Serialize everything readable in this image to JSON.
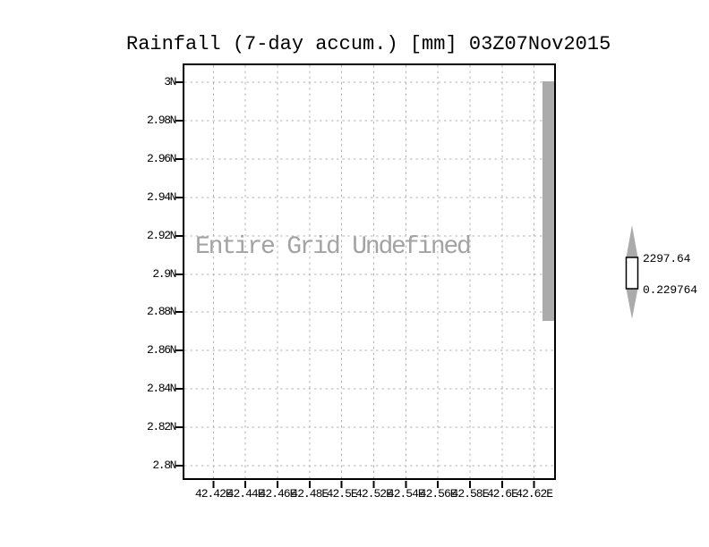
{
  "title": "Rainfall (7-day accum.) [mm] 03Z07Nov2015",
  "plot": {
    "annotation": "Entire Grid Undefined",
    "y_axis": {
      "labels": [
        "3N",
        "2.98N",
        "2.96N",
        "2.94N",
        "2.92N",
        "2.9N",
        "2.88N",
        "2.86N",
        "2.84N",
        "2.82N",
        "2.8N"
      ]
    },
    "x_axis": {
      "labels": [
        "42.42E",
        "42.44E",
        "42.46E",
        "42.48E",
        "42.5E",
        "42.52E",
        "42.54E",
        "42.56E",
        "42.58E",
        "42.6E",
        "42.62E"
      ]
    }
  },
  "colorbar": {
    "max_label": "2297.64",
    "min_label": "0.229764"
  },
  "colors": {
    "background": "#ffffff",
    "axis": "#000000",
    "grid": "#b3b3b3",
    "shade": "#ababab",
    "annotation": "#a3a3a3",
    "colorbar_fill": "#ffffff"
  },
  "chart_data": {
    "type": "heatmap",
    "title": "Rainfall (7-day accum.) [mm] 03Z07Nov2015",
    "variable": "Rainfall (7-day accum.)",
    "units": "mm",
    "valid_time": "03Z07Nov2015",
    "status": "Entire Grid Undefined",
    "values": null,
    "x_ticks": [
      42.42,
      42.44,
      42.46,
      42.48,
      42.5,
      42.52,
      42.54,
      42.56,
      42.58,
      42.6,
      42.62
    ],
    "x_tick_labels": [
      "42.42E",
      "42.44E",
      "42.46E",
      "42.48E",
      "42.5E",
      "42.52E",
      "42.54E",
      "42.56E",
      "42.58E",
      "42.6E",
      "42.62E"
    ],
    "y_ticks": [
      3.0,
      2.98,
      2.96,
      2.94,
      2.92,
      2.9,
      2.88,
      2.86,
      2.84,
      2.82,
      2.8
    ],
    "y_tick_labels": [
      "3N",
      "2.98N",
      "2.96N",
      "2.94N",
      "2.92N",
      "2.9N",
      "2.88N",
      "2.86N",
      "2.84N",
      "2.82N",
      "2.8N"
    ],
    "xlim": [
      42.41,
      42.63
    ],
    "ylim": [
      2.79,
      3.01
    ],
    "grid": true,
    "colorbar": {
      "min": 0.229764,
      "max": 2297.64,
      "orientation": "vertical",
      "position": "right"
    }
  }
}
